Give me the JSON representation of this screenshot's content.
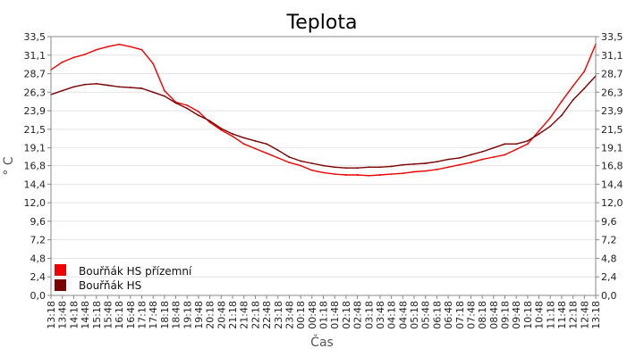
{
  "chart_data": {
    "type": "line",
    "title": "Teplota",
    "xlabel": "Čas",
    "ylabel": "° C",
    "ylim": [
      0,
      33.5
    ],
    "grid": true,
    "legend_placement": "bottom-left",
    "y_ticks": [
      "0,0",
      "2,4",
      "4,8",
      "7,2",
      "9,6",
      "12,0",
      "14,4",
      "16,8",
      "19,1",
      "21,5",
      "23,9",
      "26,3",
      "28,7",
      "31,1",
      "33,5"
    ],
    "x_ticks": [
      "13:18",
      "13:48",
      "14:18",
      "14:48",
      "15:18",
      "15:48",
      "16:18",
      "16:48",
      "17:18",
      "17:48",
      "18:18",
      "18:48",
      "19:18",
      "19:48",
      "20:18",
      "20:48",
      "21:18",
      "21:48",
      "22:18",
      "22:48",
      "23:18",
      "23:48",
      "00:18",
      "00:48",
      "01:18",
      "01:48",
      "02:18",
      "02:48",
      "03:18",
      "03:48",
      "04:18",
      "04:48",
      "05:18",
      "05:48",
      "06:18",
      "06:48",
      "07:18",
      "07:48",
      "08:18",
      "08:48",
      "09:18",
      "09:48",
      "10:18",
      "10:48",
      "11:18",
      "11:48",
      "12:18",
      "12:48",
      "13:18"
    ],
    "series": [
      {
        "name": "Bouřňák HS přízemní",
        "color": "#ee0000",
        "values": [
          29.2,
          30.2,
          30.8,
          31.2,
          31.8,
          32.2,
          32.5,
          32.2,
          31.8,
          30.0,
          26.5,
          25.0,
          24.6,
          23.8,
          22.4,
          21.4,
          20.6,
          19.6,
          19.0,
          18.4,
          17.8,
          17.2,
          16.8,
          16.2,
          15.9,
          15.7,
          15.6,
          15.6,
          15.5,
          15.6,
          15.7,
          15.8,
          16.0,
          16.1,
          16.3,
          16.6,
          16.9,
          17.2,
          17.6,
          17.9,
          18.2,
          18.9,
          19.6,
          21.3,
          23.0,
          25.1,
          27.1,
          29.0,
          32.5
        ]
      },
      {
        "name": "Bouřňák HS",
        "color": "#7a0000",
        "values": [
          26.0,
          26.5,
          27.0,
          27.3,
          27.4,
          27.2,
          27.0,
          26.9,
          26.8,
          26.3,
          25.8,
          24.9,
          24.2,
          23.3,
          22.6,
          21.6,
          20.9,
          20.4,
          20.0,
          19.6,
          18.8,
          17.9,
          17.4,
          17.1,
          16.8,
          16.6,
          16.5,
          16.5,
          16.6,
          16.6,
          16.7,
          16.9,
          17.0,
          17.1,
          17.3,
          17.6,
          17.8,
          18.2,
          18.6,
          19.1,
          19.6,
          19.6,
          20.0,
          20.9,
          21.9,
          23.3,
          25.3,
          26.8,
          28.4
        ]
      }
    ]
  }
}
